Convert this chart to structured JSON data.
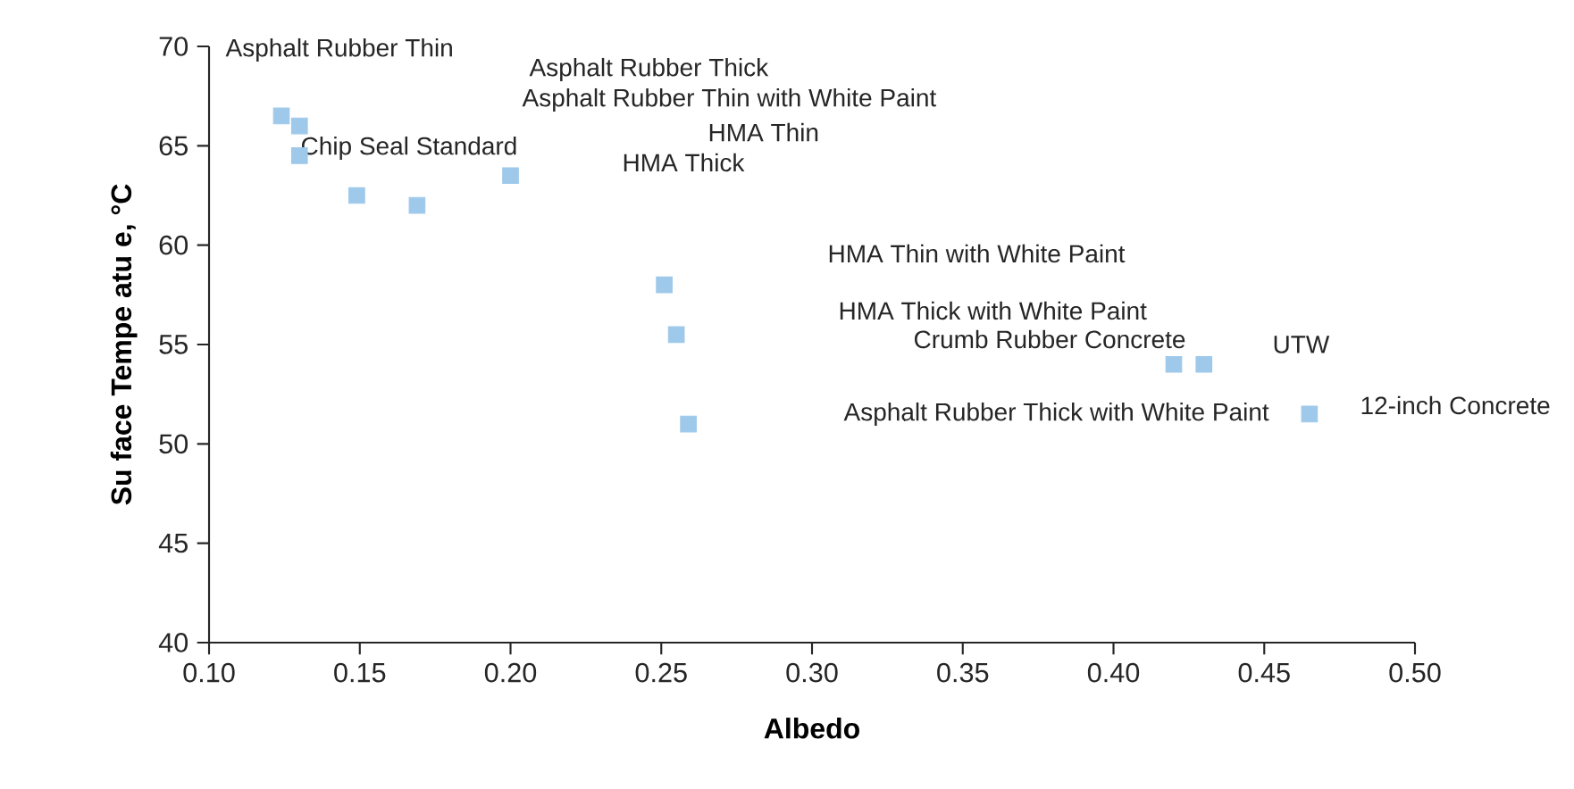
{
  "chart_data": {
    "type": "scatter",
    "xlabel": "Albedo",
    "ylabel": "Su face Tempe atu e, °C",
    "x": [
      0.124,
      0.13,
      0.13,
      0.149,
      0.169,
      0.2,
      0.251,
      0.255,
      0.259,
      0.42,
      0.43,
      0.465
    ],
    "values": [
      66.5,
      66.0,
      64.5,
      62.5,
      62.0,
      63.5,
      58.0,
      55.5,
      51.0,
      54.0,
      54.0,
      51.5
    ],
    "color": "#9fc9ea",
    "marker": "square",
    "grid": false,
    "xlim": [
      0.1,
      0.5
    ],
    "xticks": [
      {
        "value": 0.1,
        "label": "0.10"
      },
      {
        "value": 0.15,
        "label": "0.15"
      },
      {
        "value": 0.2,
        "label": "0.20"
      },
      {
        "value": 0.25,
        "label": "0.25"
      },
      {
        "value": 0.3,
        "label": "0.30"
      },
      {
        "value": 0.35,
        "label": "0.35"
      },
      {
        "value": 0.4,
        "label": "0.40"
      },
      {
        "value": 0.45,
        "label": "0.45"
      },
      {
        "value": 0.5,
        "label": "0.50"
      }
    ],
    "ylim": [
      40,
      70
    ],
    "yticks": [
      40,
      45,
      50,
      55,
      60,
      65,
      70
    ],
    "annotations": [
      "Asphalt Rubber Thin",
      "Asphalt Rubber Thick",
      "Asphalt Rubber Thin with White Paint",
      "HMA Thin",
      "HMA Thick",
      "Chip Seal Standard",
      "HMA Thin with White Paint",
      "HMA Thick with White Paint",
      "Crumb Rubber Concrete",
      "UTW",
      "Asphalt Rubber Thick with White Paint",
      "12-inch Concrete"
    ]
  }
}
